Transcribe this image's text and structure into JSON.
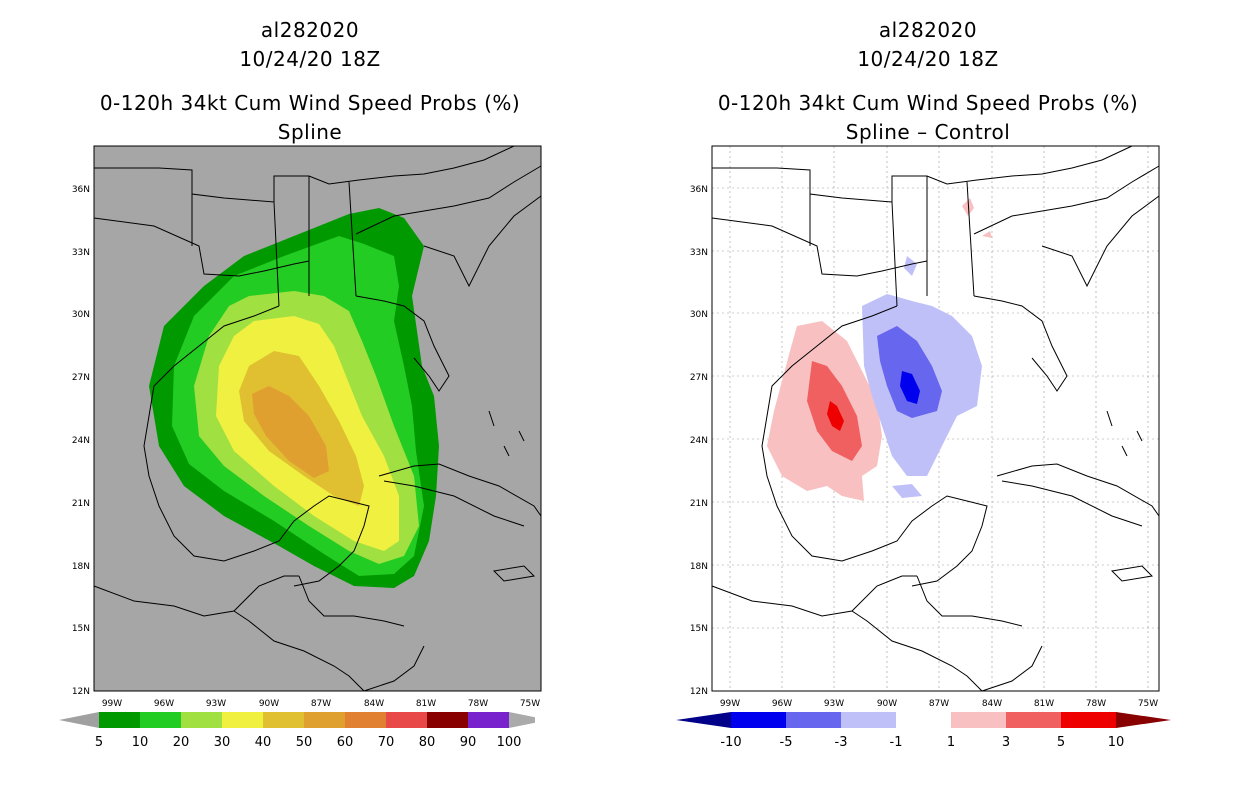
{
  "left_panel": {
    "storm_id": "al282020",
    "datetime": "10/24/20 18Z",
    "product": "0-120h 34kt Cum Wind Speed Probs (%)",
    "subtitle": "Spline",
    "colorbar": {
      "labels": [
        "5",
        "10",
        "20",
        "30",
        "40",
        "50",
        "60",
        "70",
        "80",
        "90",
        "100"
      ],
      "colors": [
        "#a0a0a0",
        "#009900",
        "#22cc22",
        "#a0e040",
        "#f0f040",
        "#e0c030",
        "#e0a030",
        "#e08030",
        "#e84848",
        "#880000",
        "#7722cc",
        "#aaaaaa"
      ]
    }
  },
  "right_panel": {
    "storm_id": "al282020",
    "datetime": "10/24/20 18Z",
    "product": "0-120h 34kt Cum Wind Speed Probs (%)",
    "subtitle": "Spline – Control",
    "colorbar": {
      "labels": [
        "-10",
        "-5",
        "-3",
        "-1",
        "1",
        "3",
        "5",
        "10"
      ],
      "colors": [
        "#000088",
        "#0000ee",
        "#6666ee",
        "#c0c0f8",
        "#ffffff",
        "#f8c0c0",
        "#f06060",
        "#ee0000",
        "#880000"
      ]
    }
  },
  "axes": {
    "lat_labels": [
      "36N",
      "33N",
      "30N",
      "27N",
      "24N",
      "21N",
      "18N",
      "15N",
      "12N"
    ],
    "lon_labels": [
      "99W",
      "96W",
      "93W",
      "90W",
      "87W",
      "84W",
      "81W",
      "78W",
      "75W"
    ]
  },
  "colors": {
    "land_left": "#a6a6a6",
    "frame": "#000000"
  }
}
